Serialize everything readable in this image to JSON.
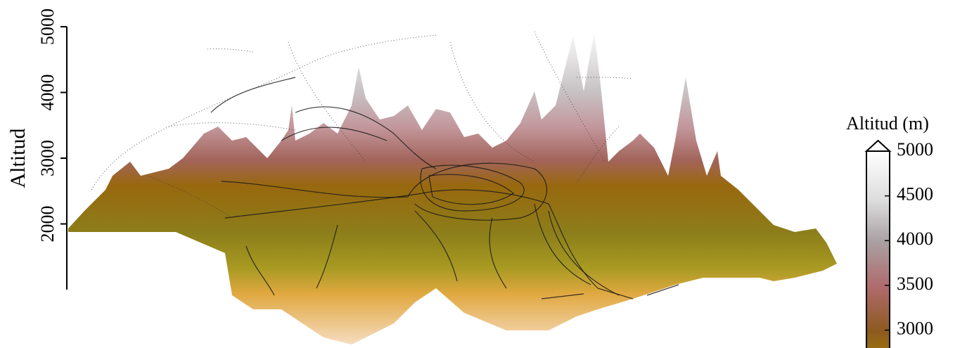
{
  "chart_data": {
    "type": "terrain",
    "ylabel": "Altitud",
    "ylim": [
      1000,
      5000
    ],
    "yticks": [
      2000,
      3000,
      4000,
      5000
    ],
    "colorbar": {
      "title": "Altitud (m)",
      "clim": [
        2800,
        5000
      ],
      "ticks": [
        5000,
        4500,
        4000,
        3500,
        3000
      ]
    }
  }
}
